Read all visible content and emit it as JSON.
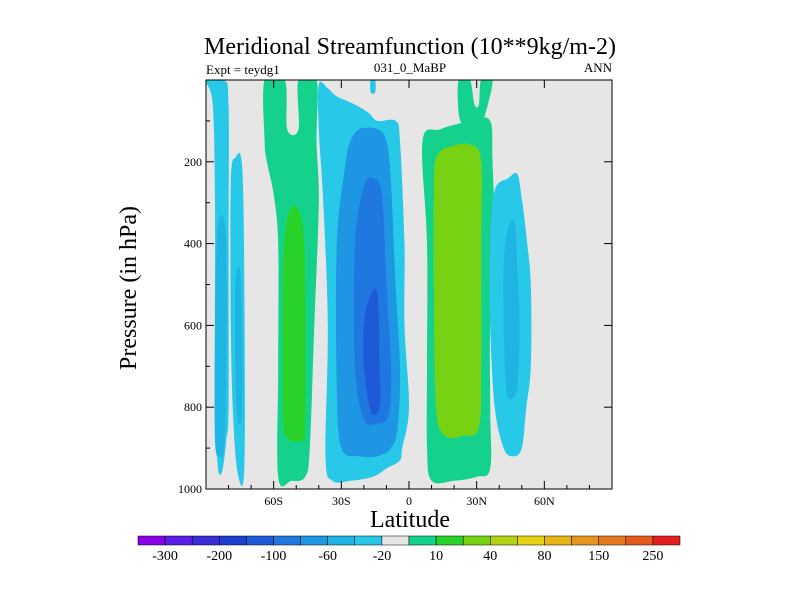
{
  "chart_data": {
    "type": "heatmap",
    "title": "Meridional Streamfunction (10**9kg/m-2)",
    "left_label": "Expt = teydg1",
    "center_label": "031_0_MaBP",
    "right_label": "ANN",
    "xlabel": "Latitude",
    "ylabel": "Pressure (in hPa)",
    "xlim": [
      -90,
      90
    ],
    "ylim": [
      0,
      1000
    ],
    "x_ticks": [
      {
        "value": -60,
        "label": "60S"
      },
      {
        "value": -30,
        "label": "30S"
      },
      {
        "value": 0,
        "label": "0"
      },
      {
        "value": 30,
        "label": "30N"
      },
      {
        "value": 60,
        "label": "60N"
      }
    ],
    "y_ticks": [
      {
        "value": 200,
        "label": "200"
      },
      {
        "value": 400,
        "label": "400"
      },
      {
        "value": 600,
        "label": "600"
      },
      {
        "value": 800,
        "label": "800"
      },
      {
        "value": 1000,
        "label": "1000"
      }
    ],
    "colorbar": {
      "colors": [
        "#8a00e6",
        "#5a1ee6",
        "#3a2ed6",
        "#1e3ecf",
        "#1e5ad8",
        "#1e78e0",
        "#1e96e4",
        "#1eb4e4",
        "#28c8e8",
        "#e6e6e6",
        "#14d28c",
        "#28d228",
        "#78d214",
        "#b4d214",
        "#e6d214",
        "#e6b414",
        "#e6961e",
        "#e6781e",
        "#e65a1e",
        "#e61e1e"
      ],
      "labels": [
        {
          "boundary": 1,
          "text": "-300"
        },
        {
          "boundary": 3,
          "text": "-200"
        },
        {
          "boundary": 5,
          "text": "-100"
        },
        {
          "boundary": 7,
          "text": "-60"
        },
        {
          "boundary": 9,
          "text": "-20"
        },
        {
          "boundary": 11,
          "text": "10"
        },
        {
          "boundary": 13,
          "text": "40"
        },
        {
          "boundary": 15,
          "text": "80"
        },
        {
          "boundary": 17,
          "text": "150"
        },
        {
          "boundary": 19,
          "text": "250"
        }
      ]
    },
    "background_color": "#e6e6e6",
    "regions": [
      {
        "name": "south-polar-cell-outer",
        "color": "#28c8e8",
        "outline": [
          [
            -90,
            0
          ],
          [
            -87,
            60
          ],
          [
            -86,
            300
          ],
          [
            -86,
            700
          ],
          [
            -85,
            930
          ],
          [
            -83,
            960
          ],
          [
            -81,
            880
          ],
          [
            -80,
            800
          ],
          [
            -80,
            400
          ],
          [
            -80,
            60
          ],
          [
            -82,
            0
          ]
        ]
      },
      {
        "name": "south-polar-cell-inner",
        "color": "#28c8e8",
        "outline": [
          [
            -79,
            250
          ],
          [
            -77,
            190
          ],
          [
            -74,
            210
          ],
          [
            -73,
            500
          ],
          [
            -73,
            950
          ],
          [
            -76,
            960
          ],
          [
            -78,
            820
          ],
          [
            -79,
            600
          ]
        ]
      },
      {
        "name": "south-polar-cell-core",
        "color": "#1eb4e4",
        "outline": [
          [
            -83,
            330
          ],
          [
            -81,
            400
          ],
          [
            -81,
            700
          ],
          [
            -82,
            900
          ],
          [
            -84,
            920
          ],
          [
            -86,
            880
          ],
          [
            -86,
            600
          ],
          [
            -85,
            380
          ]
        ]
      },
      {
        "name": "south-ferrel-cell-core",
        "color": "#1eb4e4",
        "outline": [
          [
            -77,
            500
          ],
          [
            -75,
            460
          ],
          [
            -74,
            600
          ],
          [
            -74,
            810
          ],
          [
            -76,
            830
          ],
          [
            -77,
            700
          ]
        ]
      },
      {
        "name": "south-ferrel-cell-outer",
        "color": "#14d28c",
        "outline": [
          [
            -64,
            0
          ],
          [
            -64,
            150
          ],
          [
            -63,
            200
          ],
          [
            -60,
            280
          ],
          [
            -58,
            400
          ],
          [
            -58,
            700
          ],
          [
            -58,
            970
          ],
          [
            -52,
            980
          ],
          [
            -46,
            970
          ],
          [
            -44,
            900
          ],
          [
            -42,
            600
          ],
          [
            -40,
            300
          ],
          [
            -41,
            150
          ],
          [
            -41,
            0
          ],
          [
            -49,
            0
          ],
          [
            -49,
            120
          ],
          [
            -54,
            120
          ],
          [
            -55,
            0
          ]
        ]
      },
      {
        "name": "south-ferrel-cell-inner",
        "color": "#28d228",
        "outline": [
          [
            -53,
            320
          ],
          [
            -50,
            310
          ],
          [
            -47,
            360
          ],
          [
            -46,
            500
          ],
          [
            -46,
            850
          ],
          [
            -48,
            880
          ],
          [
            -53,
            880
          ],
          [
            -56,
            820
          ],
          [
            -56,
            500
          ],
          [
            -55,
            380
          ]
        ]
      },
      {
        "name": "south-hadley-cell-outer",
        "color": "#28c8e8",
        "outline": [
          [
            -40,
            10
          ],
          [
            -36,
            20
          ],
          [
            -32,
            40
          ],
          [
            -24,
            60
          ],
          [
            -18,
            80
          ],
          [
            -14,
            100
          ],
          [
            -6,
            100
          ],
          [
            -4,
            150
          ],
          [
            -2,
            400
          ],
          [
            -2,
            600
          ],
          [
            0,
            800
          ],
          [
            -3,
            900
          ],
          [
            -4,
            930
          ],
          [
            -10,
            950
          ],
          [
            -16,
            970
          ],
          [
            -26,
            980
          ],
          [
            -34,
            980
          ],
          [
            -37,
            920
          ],
          [
            -36,
            600
          ],
          [
            -38,
            300
          ],
          [
            -40,
            120
          ]
        ]
      },
      {
        "name": "south-hadley-cell-middle",
        "color": "#1e96e4",
        "outline": [
          [
            -26,
            150
          ],
          [
            -22,
            120
          ],
          [
            -14,
            120
          ],
          [
            -10,
            150
          ],
          [
            -8,
            250
          ],
          [
            -6,
            500
          ],
          [
            -4,
            700
          ],
          [
            -5,
            850
          ],
          [
            -8,
            900
          ],
          [
            -14,
            920
          ],
          [
            -22,
            920
          ],
          [
            -30,
            900
          ],
          [
            -32,
            750
          ],
          [
            -32,
            400
          ],
          [
            -28,
            200
          ]
        ]
      },
      {
        "name": "south-hadley-cell-inner",
        "color": "#1e78e0",
        "outline": [
          [
            -20,
            260
          ],
          [
            -16,
            240
          ],
          [
            -12,
            280
          ],
          [
            -10,
            500
          ],
          [
            -8,
            700
          ],
          [
            -9,
            820
          ],
          [
            -14,
            840
          ],
          [
            -20,
            830
          ],
          [
            -24,
            700
          ],
          [
            -24,
            400
          ]
        ]
      },
      {
        "name": "south-hadley-cell-core",
        "color": "#1e5ad8",
        "outline": [
          [
            -18,
            540
          ],
          [
            -14,
            520
          ],
          [
            -13,
            700
          ],
          [
            -13,
            800
          ],
          [
            -17,
            810
          ],
          [
            -20,
            700
          ],
          [
            -20,
            600
          ]
        ]
      },
      {
        "name": "north-hadley-cell-top",
        "color": "#14d28c",
        "outline": [
          [
            22,
            0
          ],
          [
            22,
            80
          ],
          [
            24,
            110
          ],
          [
            28,
            110
          ],
          [
            32,
            100
          ],
          [
            34,
            80
          ],
          [
            37,
            0
          ],
          [
            32,
            0
          ],
          [
            31,
            60
          ],
          [
            29,
            60
          ],
          [
            27,
            0
          ]
        ]
      },
      {
        "name": "north-hadley-cell-outer",
        "color": "#14d28c",
        "outline": [
          [
            6,
            150
          ],
          [
            14,
            120
          ],
          [
            28,
            100
          ],
          [
            36,
            100
          ],
          [
            37,
            200
          ],
          [
            38,
            400
          ],
          [
            36,
            600
          ],
          [
            36,
            800
          ],
          [
            36,
            950
          ],
          [
            30,
            970
          ],
          [
            20,
            980
          ],
          [
            10,
            980
          ],
          [
            8,
            900
          ],
          [
            8,
            700
          ],
          [
            8,
            400
          ]
        ]
      },
      {
        "name": "north-hadley-cell-inner",
        "color": "#78d214",
        "outline": [
          [
            12,
            190
          ],
          [
            20,
            160
          ],
          [
            28,
            160
          ],
          [
            32,
            200
          ],
          [
            32,
            400
          ],
          [
            32,
            700
          ],
          [
            31,
            850
          ],
          [
            24,
            870
          ],
          [
            16,
            870
          ],
          [
            12,
            800
          ],
          [
            11,
            500
          ],
          [
            11,
            300
          ]
        ]
      },
      {
        "name": "north-ferrel-cell-outer",
        "color": "#28c8e8",
        "outline": [
          [
            38,
            270
          ],
          [
            44,
            240
          ],
          [
            48,
            230
          ],
          [
            50,
            290
          ],
          [
            52,
            380
          ],
          [
            54,
            500
          ],
          [
            54,
            700
          ],
          [
            52,
            800
          ],
          [
            50,
            900
          ],
          [
            46,
            920
          ],
          [
            42,
            900
          ],
          [
            38,
            800
          ],
          [
            36,
            600
          ],
          [
            36,
            400
          ]
        ]
      },
      {
        "name": "north-ferrel-cell-inner",
        "color": "#1eb4e4",
        "outline": [
          [
            44,
            360
          ],
          [
            47,
            350
          ],
          [
            48,
            450
          ],
          [
            49,
            600
          ],
          [
            48,
            750
          ],
          [
            45,
            780
          ],
          [
            43,
            750
          ],
          [
            42,
            600
          ],
          [
            42,
            450
          ]
        ]
      },
      {
        "name": "top-edge-cell",
        "color": "#28c8e8",
        "outline": [
          [
            -17,
            0
          ],
          [
            -15,
            0
          ],
          [
            -15,
            30
          ],
          [
            -17,
            30
          ]
        ]
      }
    ]
  }
}
